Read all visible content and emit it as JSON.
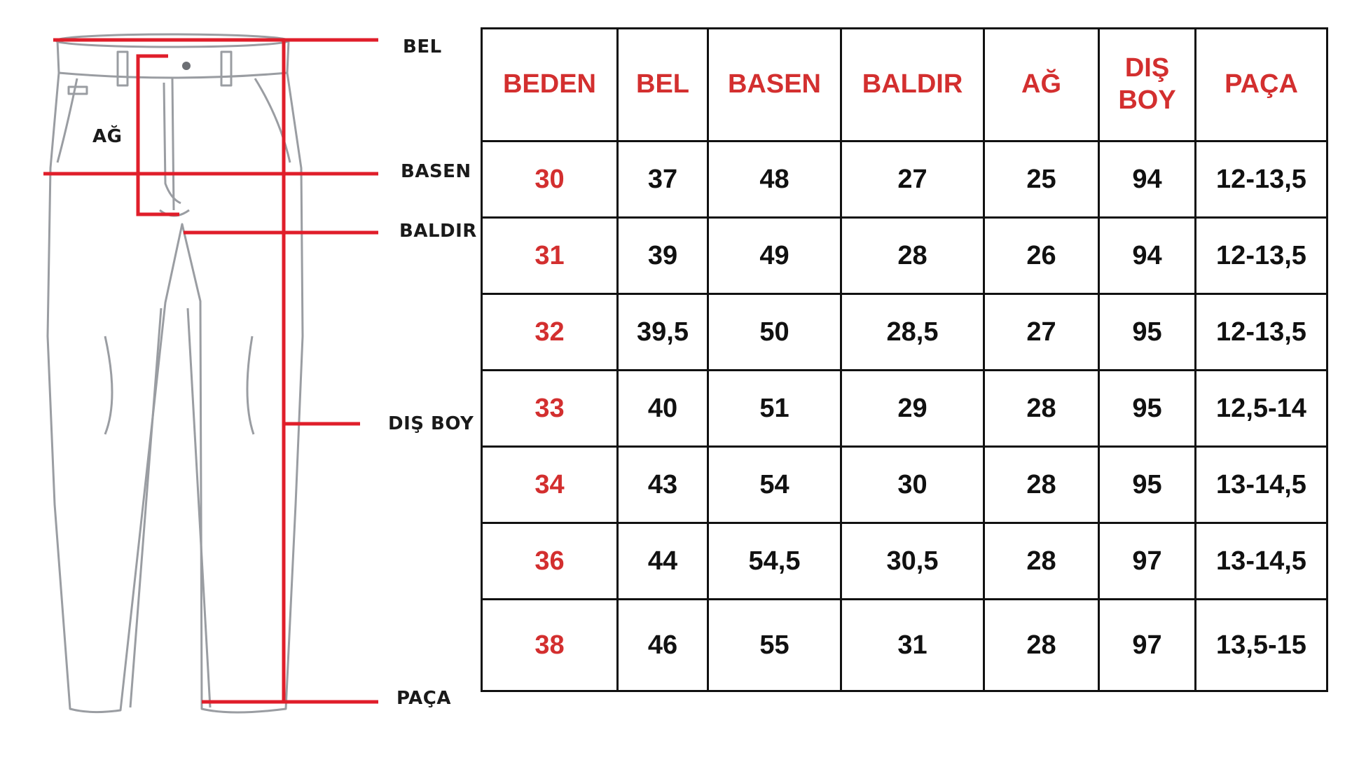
{
  "colors": {
    "accent": "#d32f2f",
    "text": "#111111",
    "outline": "#8a8d92",
    "measure_line": "#e01e2a"
  },
  "diagram": {
    "labels": {
      "bel": "BEL",
      "ag": "AĞ",
      "basen": "BASEN",
      "baldir": "BALDIR",
      "dis_boy": "DIŞ BOY",
      "paca": "PAÇA"
    }
  },
  "table": {
    "headers": [
      "BEDEN",
      "BEL",
      "BASEN",
      "BALDIR",
      "AĞ",
      "DIŞ BOY",
      "PAÇA"
    ],
    "rows": [
      [
        "30",
        "37",
        "48",
        "27",
        "25",
        "94",
        "12-13,5"
      ],
      [
        "31",
        "39",
        "49",
        "28",
        "26",
        "94",
        "12-13,5"
      ],
      [
        "32",
        "39,5",
        "50",
        "28,5",
        "27",
        "95",
        "12-13,5"
      ],
      [
        "33",
        "40",
        "51",
        "29",
        "28",
        "95",
        "12,5-14"
      ],
      [
        "34",
        "43",
        "54",
        "30",
        "28",
        "95",
        "13-14,5"
      ],
      [
        "36",
        "44",
        "54,5",
        "30,5",
        "28",
        "97",
        "13-14,5"
      ],
      [
        "38",
        "46",
        "55",
        "31",
        "28",
        "97",
        "13,5-15"
      ]
    ]
  }
}
